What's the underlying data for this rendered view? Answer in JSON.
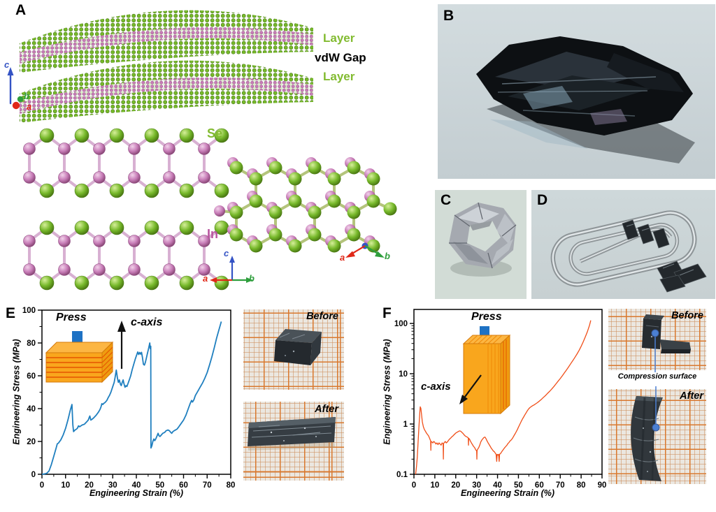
{
  "panel_a": {
    "label": "A",
    "layer_top": "Layer",
    "vdw_gap": "vdW Gap",
    "layer_bottom": "Layer",
    "se_label": "Se",
    "in_label": "In",
    "axis_a": "a",
    "axis_b": "b",
    "axis_c": "c",
    "colors": {
      "se_green": "#76b82a",
      "in_purple": "#c77cb7",
      "label_green": "#82bb30",
      "label_purple": "#b8569f"
    }
  },
  "panel_b": {
    "label": "B"
  },
  "panel_c": {
    "label": "C"
  },
  "panel_d": {
    "label": "D"
  },
  "panel_e": {
    "label": "E",
    "inset_press": "Press",
    "inset_c_axis": "c-axis",
    "photo_before": "Before",
    "photo_after": "After",
    "inset_colors": {
      "arrow_blue": "#1e72c4",
      "box_yellow": "#f9a61d"
    }
  },
  "panel_f": {
    "label": "F",
    "inset_press": "Press",
    "inset_c_axis": "c-axis",
    "photo_before": "Before",
    "photo_after": "After",
    "compression_label": "Compression surface",
    "marker_blue": "#4b7fd2",
    "inset_colors": {
      "arrow_blue": "#1e72c4",
      "box_yellow": "#f9a61d"
    }
  },
  "chart_data": [
    {
      "type": "line",
      "panel": "E",
      "title": "",
      "xlabel": "Engineering Strain (%)",
      "ylabel": "Engineering Stress (MPa)",
      "xlim": [
        0,
        80
      ],
      "ylim": [
        0,
        100
      ],
      "yscale": "linear",
      "xticks": [
        0,
        10,
        20,
        30,
        40,
        50,
        60,
        70,
        80
      ],
      "yticks": [
        0,
        20,
        40,
        60,
        80,
        100
      ],
      "grid": false,
      "legend": "none",
      "color": "#1f7fbf",
      "points": [
        [
          0,
          0
        ],
        [
          1,
          0.2
        ],
        [
          2,
          0.6
        ],
        [
          3,
          2
        ],
        [
          4,
          6
        ],
        [
          5,
          11
        ],
        [
          6,
          16
        ],
        [
          6.5,
          18.5
        ],
        [
          7,
          19
        ],
        [
          7.5,
          20
        ],
        [
          8,
          21
        ],
        [
          9,
          24
        ],
        [
          10,
          28
        ],
        [
          11,
          33
        ],
        [
          12,
          39
        ],
        [
          12.7,
          42.5
        ],
        [
          13.1,
          30
        ],
        [
          13.4,
          26
        ],
        [
          14,
          27
        ],
        [
          14.6,
          27.5
        ],
        [
          15,
          28
        ],
        [
          15.5,
          29.5
        ],
        [
          16,
          29
        ],
        [
          16.5,
          29.5
        ],
        [
          17,
          30
        ],
        [
          18,
          30.5
        ],
        [
          19,
          32
        ],
        [
          19.6,
          33
        ],
        [
          20,
          34.5
        ],
        [
          20.3,
          35.5
        ],
        [
          20.7,
          33
        ],
        [
          21.2,
          33.5
        ],
        [
          22,
          34.5
        ],
        [
          23,
          36
        ],
        [
          24,
          38
        ],
        [
          24.6,
          39.5
        ],
        [
          25,
          41
        ],
        [
          25.4,
          43
        ],
        [
          25.8,
          42.5
        ],
        [
          26.2,
          43.2
        ],
        [
          26.8,
          43.8
        ],
        [
          27.5,
          45
        ],
        [
          28,
          46.5
        ],
        [
          28.6,
          48
        ],
        [
          29.2,
          50
        ],
        [
          30,
          53.5
        ],
        [
          30.6,
          56
        ],
        [
          31,
          59
        ],
        [
          31.5,
          63.5
        ],
        [
          32,
          58.5
        ],
        [
          32.4,
          56
        ],
        [
          32.8,
          57.5
        ],
        [
          33.2,
          55
        ],
        [
          33.6,
          54
        ],
        [
          34,
          56
        ],
        [
          34.4,
          57.5
        ],
        [
          34.8,
          55
        ],
        [
          35.2,
          53
        ],
        [
          35.6,
          54
        ],
        [
          36,
          53.5
        ],
        [
          36.4,
          55
        ],
        [
          37,
          57.5
        ],
        [
          37.6,
          60
        ],
        [
          38.2,
          63.5
        ],
        [
          39,
          67.5
        ],
        [
          39.6,
          70.5
        ],
        [
          40.2,
          73
        ],
        [
          40.6,
          74.5
        ],
        [
          41,
          73
        ],
        [
          41.4,
          74.2
        ],
        [
          41.8,
          73.2
        ],
        [
          42.2,
          74.3
        ],
        [
          42.6,
          71
        ],
        [
          43,
          67
        ],
        [
          43.4,
          66.5
        ],
        [
          43.8,
          68
        ],
        [
          44.2,
          70.5
        ],
        [
          44.6,
          73
        ],
        [
          45,
          75.5
        ],
        [
          45.4,
          78
        ],
        [
          45.7,
          80
        ],
        [
          45.9,
          76.5
        ],
        [
          46.1,
          78
        ],
        [
          46.2,
          16
        ],
        [
          46.6,
          17.5
        ],
        [
          47,
          20
        ],
        [
          47.4,
          21.5
        ],
        [
          47.8,
          20.5
        ],
        [
          48.2,
          21.5
        ],
        [
          48.8,
          23.5
        ],
        [
          49.2,
          25
        ],
        [
          49.6,
          23.5
        ],
        [
          50,
          23
        ],
        [
          50.6,
          24
        ],
        [
          51.2,
          25
        ],
        [
          52,
          25.5
        ],
        [
          52.6,
          26.5
        ],
        [
          53.4,
          27
        ],
        [
          54,
          26.5
        ],
        [
          54.6,
          25.5
        ],
        [
          55,
          25
        ],
        [
          55.5,
          26
        ],
        [
          56,
          26.5
        ],
        [
          56.6,
          27
        ],
        [
          57.2,
          27.5
        ],
        [
          58,
          29
        ],
        [
          59,
          31
        ],
        [
          60,
          33
        ],
        [
          61,
          36
        ],
        [
          62,
          40
        ],
        [
          62.8,
          43
        ],
        [
          63.4,
          45
        ],
        [
          63.8,
          44
        ],
        [
          64.4,
          45.5
        ],
        [
          65,
          48
        ],
        [
          66,
          50.5
        ],
        [
          67,
          53
        ],
        [
          68,
          55.5
        ],
        [
          69,
          58.5
        ],
        [
          70,
          62
        ],
        [
          71,
          66.5
        ],
        [
          72,
          71.5
        ],
        [
          73,
          77
        ],
        [
          74,
          83
        ],
        [
          75,
          88
        ],
        [
          76,
          93
        ]
      ]
    },
    {
      "type": "line",
      "panel": "F",
      "title": "",
      "xlabel": "Engineering Strain (%)",
      "ylabel": "Engineering Stress (MPa)",
      "xlim": [
        0,
        90
      ],
      "ylim": [
        0.1,
        190
      ],
      "yscale": "log",
      "xticks": [
        0,
        10,
        20,
        30,
        40,
        50,
        60,
        70,
        80,
        90
      ],
      "yticks": [
        0.1,
        1,
        10,
        100
      ],
      "grid": false,
      "legend": "none",
      "color": "#f04e18",
      "points": [
        [
          0.8,
          0.1
        ],
        [
          1.2,
          0.14
        ],
        [
          1.6,
          0.22
        ],
        [
          2,
          0.45
        ],
        [
          2.4,
          0.9
        ],
        [
          2.8,
          1.7
        ],
        [
          3,
          2.2
        ],
        [
          3.3,
          2.05
        ],
        [
          3.7,
          1.45
        ],
        [
          4,
          1.1
        ],
        [
          4.5,
          0.88
        ],
        [
          5,
          0.78
        ],
        [
          5.5,
          0.72
        ],
        [
          6,
          0.66
        ],
        [
          6.5,
          0.62
        ],
        [
          7,
          0.58
        ],
        [
          7.5,
          0.52
        ],
        [
          8,
          0.46
        ],
        [
          8.1,
          0.3
        ],
        [
          8.2,
          0.45
        ],
        [
          8.6,
          0.44
        ],
        [
          9,
          0.42
        ],
        [
          9.5,
          0.45
        ],
        [
          10,
          0.43
        ],
        [
          10.5,
          0.4
        ],
        [
          11,
          0.42
        ],
        [
          11.5,
          0.39
        ],
        [
          12,
          0.42
        ],
        [
          12.5,
          0.4
        ],
        [
          13,
          0.38
        ],
        [
          13.5,
          0.42
        ],
        [
          14,
          0.4
        ],
        [
          14.1,
          0.2
        ],
        [
          14.2,
          0.41
        ],
        [
          14.6,
          0.43
        ],
        [
          15,
          0.45
        ],
        [
          15.5,
          0.42
        ],
        [
          16,
          0.44
        ],
        [
          16.5,
          0.47
        ],
        [
          17,
          0.5
        ],
        [
          17.5,
          0.52
        ],
        [
          18,
          0.55
        ],
        [
          18.5,
          0.57
        ],
        [
          19,
          0.6
        ],
        [
          19.5,
          0.63
        ],
        [
          20,
          0.66
        ],
        [
          20.5,
          0.68
        ],
        [
          21,
          0.7
        ],
        [
          21.5,
          0.72
        ],
        [
          22,
          0.73
        ],
        [
          22.5,
          0.71
        ],
        [
          23,
          0.68
        ],
        [
          23.5,
          0.65
        ],
        [
          24,
          0.61
        ],
        [
          24.5,
          0.58
        ],
        [
          25,
          0.56
        ],
        [
          25.5,
          0.55
        ],
        [
          26,
          0.53
        ],
        [
          26.1,
          0.38
        ],
        [
          26.2,
          0.52
        ],
        [
          26.6,
          0.5
        ],
        [
          27,
          0.46
        ],
        [
          27.5,
          0.42
        ],
        [
          28,
          0.39
        ],
        [
          28.5,
          0.36
        ],
        [
          29,
          0.34
        ],
        [
          29.5,
          0.31
        ],
        [
          30,
          0.29
        ],
        [
          30.1,
          0.2
        ],
        [
          30.2,
          0.3
        ],
        [
          30.6,
          0.32
        ],
        [
          31,
          0.34
        ],
        [
          31.5,
          0.38
        ],
        [
          32,
          0.44
        ],
        [
          32.5,
          0.48
        ],
        [
          33,
          0.51
        ],
        [
          33.5,
          0.54
        ],
        [
          34,
          0.55
        ],
        [
          34.5,
          0.51
        ],
        [
          35,
          0.46
        ],
        [
          35.5,
          0.42
        ],
        [
          36,
          0.39
        ],
        [
          36.5,
          0.36
        ],
        [
          37,
          0.33
        ],
        [
          37.5,
          0.31
        ],
        [
          38,
          0.29
        ],
        [
          38.5,
          0.28
        ],
        [
          39,
          0.26
        ],
        [
          39.3,
          0.25
        ],
        [
          39.6,
          0.18
        ],
        [
          39.8,
          0.25
        ],
        [
          40.2,
          0.24
        ],
        [
          40.5,
          0.25
        ],
        [
          40.8,
          0.18
        ],
        [
          41,
          0.25
        ],
        [
          41.5,
          0.26
        ],
        [
          42,
          0.28
        ],
        [
          42.5,
          0.3
        ],
        [
          43,
          0.32
        ],
        [
          43.5,
          0.34
        ],
        [
          44,
          0.36
        ],
        [
          44.5,
          0.38
        ],
        [
          45,
          0.41
        ],
        [
          45.5,
          0.43
        ],
        [
          46,
          0.46
        ],
        [
          46.5,
          0.48
        ],
        [
          47,
          0.51
        ],
        [
          47.5,
          0.55
        ],
        [
          48,
          0.6
        ],
        [
          48.5,
          0.65
        ],
        [
          49,
          0.71
        ],
        [
          49.5,
          0.78
        ],
        [
          50,
          0.86
        ],
        [
          50.5,
          0.95
        ],
        [
          51,
          1.05
        ],
        [
          51.5,
          1.16
        ],
        [
          52,
          1.27
        ],
        [
          52.5,
          1.38
        ],
        [
          53,
          1.5
        ],
        [
          53.5,
          1.62
        ],
        [
          54,
          1.76
        ],
        [
          54.5,
          1.9
        ],
        [
          55,
          2.02
        ],
        [
          55.5,
          2.12
        ],
        [
          56,
          2.2
        ],
        [
          56.5,
          2.28
        ],
        [
          57,
          2.34
        ],
        [
          57.5,
          2.4
        ],
        [
          58,
          2.48
        ],
        [
          59,
          2.65
        ],
        [
          60,
          2.85
        ],
        [
          61,
          3.1
        ],
        [
          62,
          3.4
        ],
        [
          63,
          3.7
        ],
        [
          64,
          4.1
        ],
        [
          65,
          4.5
        ],
        [
          66,
          5
        ],
        [
          67,
          5.6
        ],
        [
          68,
          6.3
        ],
        [
          69,
          7.1
        ],
        [
          70,
          8
        ],
        [
          71,
          9.1
        ],
        [
          72,
          10.4
        ],
        [
          73,
          11.9
        ],
        [
          74,
          13.7
        ],
        [
          75,
          15.8
        ],
        [
          76,
          18.2
        ],
        [
          77,
          21
        ],
        [
          78,
          24.5
        ],
        [
          79,
          29
        ],
        [
          80,
          35
        ],
        [
          81,
          43
        ],
        [
          82,
          54
        ],
        [
          83,
          69
        ],
        [
          84,
          92
        ],
        [
          84.6,
          115
        ]
      ]
    }
  ]
}
